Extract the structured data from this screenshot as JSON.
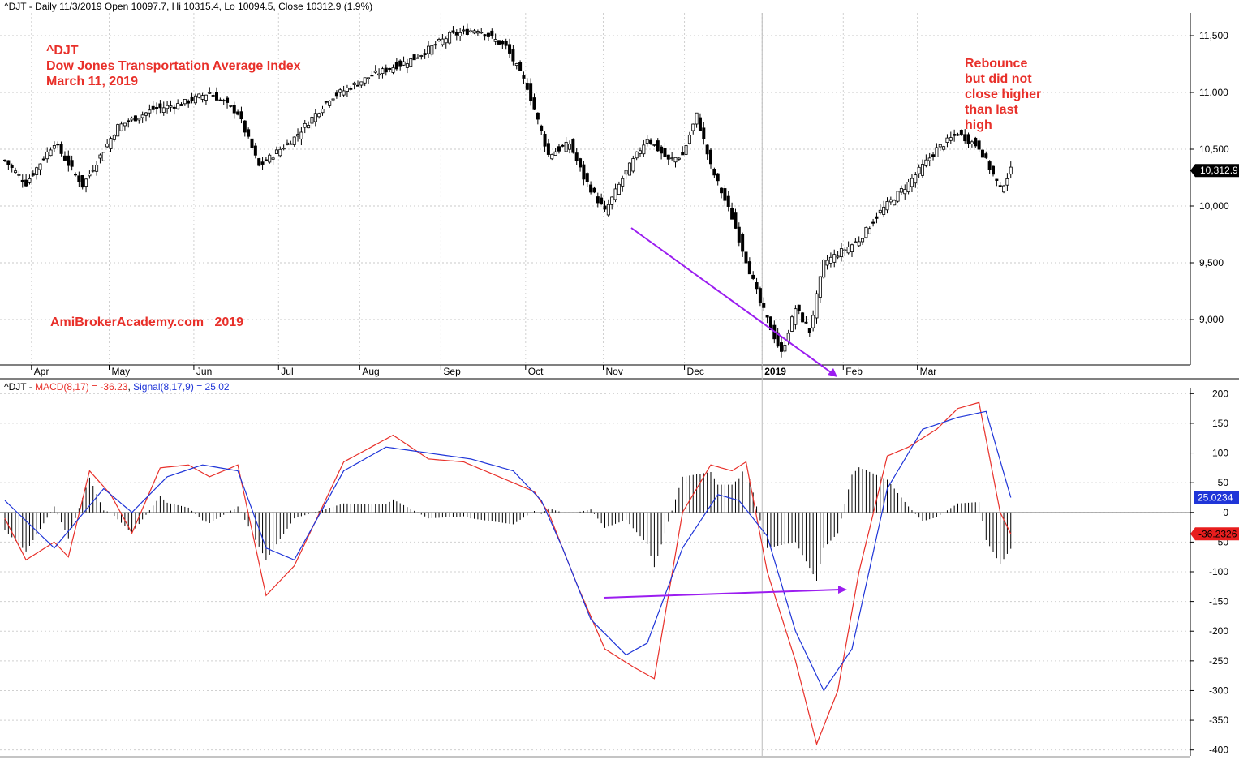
{
  "chart_data": [
    {
      "type": "candlestick",
      "title": "^DJT - Daily 11/3/2019 Open 10097.7, Hi 10315.4, Lo 10094.5, Close 10312.9 (1.9%)",
      "annotations": {
        "top_left": [
          "^DJT",
          "Dow Jones Transportation Average Index",
          "March 11, 2019"
        ],
        "watermark": "AmiBrokerAcademy.com   2019",
        "right_note": [
          "Rebounce",
          "but did not",
          "close higher",
          "than last",
          "high"
        ]
      },
      "ylim": [
        8600,
        11700
      ],
      "y_ticks": [
        9000,
        9500,
        10000,
        10500,
        11000,
        11500
      ],
      "y_tick_labels": [
        "9,000",
        "9,500",
        "10,000",
        "10,500",
        "11,000",
        "11,500"
      ],
      "last_value_label": "10,312.9",
      "x_tick_labels": [
        "Apr",
        "May",
        "Jun",
        "Jul",
        "Aug",
        "Sep",
        "Oct",
        "Nov",
        "Dec",
        "2019",
        "Feb",
        "Mar"
      ],
      "close_anchors": [
        [
          0,
          10400
        ],
        [
          6,
          10200
        ],
        [
          14,
          10560
        ],
        [
          22,
          10180
        ],
        [
          32,
          10700
        ],
        [
          42,
          10850
        ],
        [
          50,
          10900
        ],
        [
          58,
          11000
        ],
        [
          66,
          10820
        ],
        [
          72,
          10350
        ],
        [
          82,
          10600
        ],
        [
          92,
          10950
        ],
        [
          104,
          11150
        ],
        [
          116,
          11300
        ],
        [
          126,
          11500
        ],
        [
          134,
          11560
        ],
        [
          142,
          11400
        ],
        [
          148,
          11050
        ],
        [
          154,
          10450
        ],
        [
          160,
          10550
        ],
        [
          164,
          10250
        ],
        [
          170,
          9950
        ],
        [
          176,
          10300
        ],
        [
          182,
          10600
        ],
        [
          188,
          10400
        ],
        [
          192,
          10450
        ],
        [
          196,
          10800
        ],
        [
          200,
          10350
        ],
        [
          206,
          9900
        ],
        [
          214,
          9150
        ],
        [
          220,
          8700
        ],
        [
          224,
          9100
        ],
        [
          228,
          8900
        ],
        [
          232,
          9500
        ],
        [
          242,
          9700
        ],
        [
          248,
          9950
        ],
        [
          256,
          10200
        ],
        [
          264,
          10500
        ],
        [
          270,
          10640
        ],
        [
          276,
          10520
        ],
        [
          282,
          10150
        ],
        [
          285,
          10312.9
        ]
      ]
    },
    {
      "type": "line",
      "title": "^DJT - MACD(8,17) = -36.23, Signal(8,17,9) = 25.02",
      "ylim": [
        -410,
        210
      ],
      "y_ticks": [
        -400,
        -350,
        -300,
        -250,
        -200,
        -150,
        -100,
        -50,
        0,
        50,
        100,
        150,
        200
      ],
      "last_value_labels": [
        "25.0234",
        "-36.2326"
      ],
      "series": [
        {
          "name": "MACD(8,17)",
          "color": "#e8302a",
          "anchors": [
            [
              0,
              -10
            ],
            [
              6,
              -80
            ],
            [
              10,
              -65
            ],
            [
              14,
              -50
            ],
            [
              18,
              -75
            ],
            [
              24,
              70
            ],
            [
              30,
              30
            ],
            [
              36,
              -35
            ],
            [
              44,
              75
            ],
            [
              52,
              80
            ],
            [
              58,
              60
            ],
            [
              66,
              80
            ],
            [
              74,
              -140
            ],
            [
              82,
              -90
            ],
            [
              96,
              85
            ],
            [
              110,
              130
            ],
            [
              120,
              90
            ],
            [
              130,
              85
            ],
            [
              140,
              60
            ],
            [
              150,
              35
            ],
            [
              154,
              0
            ],
            [
              162,
              -120
            ],
            [
              170,
              -230
            ],
            [
              178,
              -260
            ],
            [
              184,
              -280
            ],
            [
              192,
              0
            ],
            [
              200,
              80
            ],
            [
              206,
              70
            ],
            [
              210,
              85
            ],
            [
              216,
              -100
            ],
            [
              224,
              -250
            ],
            [
              230,
              -390
            ],
            [
              236,
              -300
            ],
            [
              242,
              -100
            ],
            [
              250,
              95
            ],
            [
              256,
              110
            ],
            [
              264,
              140
            ],
            [
              270,
              175
            ],
            [
              276,
              185
            ],
            [
              282,
              0
            ],
            [
              285,
              -36.23
            ]
          ]
        },
        {
          "name": "Signal(8,17,9)",
          "color": "#1f35d8",
          "anchors": [
            [
              0,
              20
            ],
            [
              14,
              -60
            ],
            [
              28,
              40
            ],
            [
              36,
              0
            ],
            [
              46,
              60
            ],
            [
              56,
              80
            ],
            [
              66,
              70
            ],
            [
              74,
              -60
            ],
            [
              82,
              -80
            ],
            [
              96,
              70
            ],
            [
              108,
              110
            ],
            [
              120,
              100
            ],
            [
              132,
              90
            ],
            [
              144,
              70
            ],
            [
              152,
              20
            ],
            [
              158,
              -60
            ],
            [
              166,
              -180
            ],
            [
              176,
              -240
            ],
            [
              182,
              -220
            ],
            [
              192,
              -60
            ],
            [
              202,
              30
            ],
            [
              208,
              20
            ],
            [
              216,
              -40
            ],
            [
              224,
              -200
            ],
            [
              232,
              -300
            ],
            [
              240,
              -230
            ],
            [
              250,
              40
            ],
            [
              260,
              140
            ],
            [
              270,
              160
            ],
            [
              278,
              170
            ],
            [
              285,
              25.02
            ]
          ]
        }
      ]
    }
  ]
}
